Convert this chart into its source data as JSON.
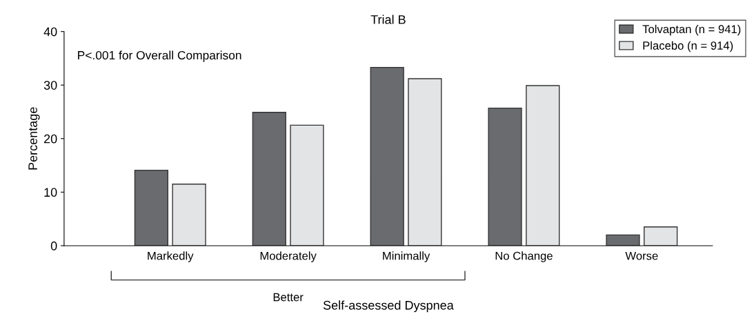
{
  "chart_data": {
    "type": "bar",
    "title": "Trial B",
    "xlabel": "Self-assessed Dyspnea",
    "ylabel": "Percentage",
    "categories": [
      "Markedly",
      "Moderately",
      "Minimally",
      "No Change",
      "Worse"
    ],
    "series": [
      {
        "name": "Tolvaptan (n = 941)",
        "color": "#6a6b6f",
        "values": [
          14.1,
          24.9,
          33.3,
          25.7,
          2.0
        ]
      },
      {
        "name": "Placebo (n = 914)",
        "color": "#e3e4e6",
        "values": [
          11.5,
          22.5,
          31.2,
          29.9,
          3.5
        ]
      }
    ],
    "ylim": [
      0,
      40
    ],
    "yticks": [
      0,
      10,
      20,
      30,
      40
    ],
    "grid": false,
    "legend": "top right",
    "annotations": [
      "P<.001 for Overall Comparison",
      "Better"
    ]
  }
}
